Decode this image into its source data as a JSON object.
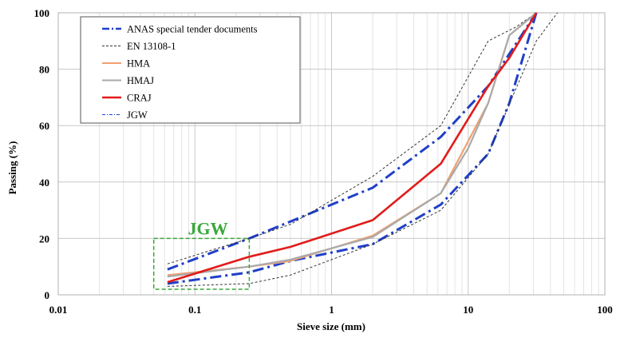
{
  "chart_data": {
    "type": "line",
    "title": "",
    "xlabel": "Sieve size (mm)",
    "ylabel": "Passing (%)",
    "xscale": "log",
    "xlim": [
      0.01,
      100
    ],
    "ylim": [
      0,
      100
    ],
    "x_ticks": [
      "0.01",
      "0.1",
      "1",
      "10",
      "100"
    ],
    "y_ticks": [
      "0",
      "20",
      "40",
      "60",
      "80",
      "100"
    ],
    "grid": "on",
    "legend_position": "top-left",
    "legend": [
      "ANAS special tender documents",
      "EN 13108-1",
      "HMA",
      "HMAJ",
      "CRAJ",
      "JGW"
    ],
    "annotation": {
      "text": "JGW",
      "color": "#3aa83a",
      "box_x": [
        0.05,
        0.25
      ],
      "box_y": [
        2,
        20
      ]
    },
    "series": [
      {
        "name": "ANAS special tender documents",
        "style": "dashdot",
        "color": "#1f3fc8",
        "x": [
          0.063,
          0.25,
          0.5,
          2,
          6.3,
          14,
          20,
          31.5
        ],
        "y": [
          4,
          8,
          12,
          18,
          32,
          50,
          68,
          100
        ]
      },
      {
        "name": "ANAS special tender documents",
        "style": "dashdot",
        "color": "#1f3fc8",
        "x": [
          0.063,
          0.25,
          0.5,
          2,
          6.3,
          14,
          31.5
        ],
        "y": [
          9,
          20,
          26,
          38,
          56,
          74,
          100
        ]
      },
      {
        "name": "EN 13108-1",
        "style": "dotted",
        "color": "#333333",
        "x": [
          0.063,
          0.25,
          0.5,
          2,
          6.3,
          14,
          31.5,
          45
        ],
        "y": [
          3,
          4,
          7,
          18,
          30,
          50,
          90,
          100
        ]
      },
      {
        "name": "EN 13108-1",
        "style": "dotted",
        "color": "#333333",
        "x": [
          0.063,
          0.25,
          0.5,
          2,
          6.3,
          14,
          22.4,
          31.5
        ],
        "y": [
          11,
          20,
          25,
          42,
          60,
          90,
          95,
          100
        ]
      },
      {
        "name": "HMA",
        "style": "solid",
        "color": "#f0a070",
        "x": [
          0.063,
          0.25,
          0.5,
          2,
          6.3,
          14,
          20,
          31.5
        ],
        "y": [
          7,
          10,
          12,
          21,
          36,
          68,
          92,
          100
        ]
      },
      {
        "name": "HMAJ",
        "style": "solid",
        "color": "#aaaaaa",
        "x": [
          0.063,
          0.25,
          0.5,
          2,
          6.3,
          10,
          14,
          20,
          31.5
        ],
        "y": [
          6.5,
          10,
          12.5,
          20.5,
          36,
          52,
          68,
          92,
          100
        ]
      },
      {
        "name": "CRAJ",
        "style": "solid",
        "color": "#e21b1b",
        "x": [
          0.063,
          0.25,
          0.5,
          2,
          6.3,
          14,
          20,
          31.5
        ],
        "y": [
          4.5,
          13.5,
          17,
          26.5,
          46.5,
          74,
          84,
          100
        ]
      }
    ]
  }
}
